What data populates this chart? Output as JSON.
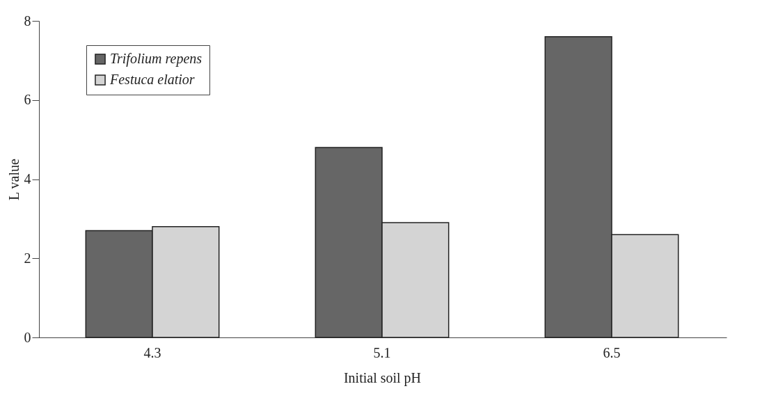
{
  "chart_data": {
    "type": "bar",
    "xlabel": "Initial soil pH",
    "ylabel": "L value",
    "categories": [
      "4.3",
      "5.1",
      "6.5"
    ],
    "series": [
      {
        "name": "Trifolium repens",
        "color": "#666666",
        "values": [
          2.7,
          4.8,
          7.6
        ]
      },
      {
        "name": "Festuca elatior",
        "color": "#d4d4d4",
        "values": [
          2.8,
          2.9,
          2.6
        ]
      }
    ],
    "ylim": [
      0,
      8
    ],
    "yticks": [
      0,
      2,
      4,
      6,
      8
    ],
    "grid": false,
    "legend": "top left"
  }
}
